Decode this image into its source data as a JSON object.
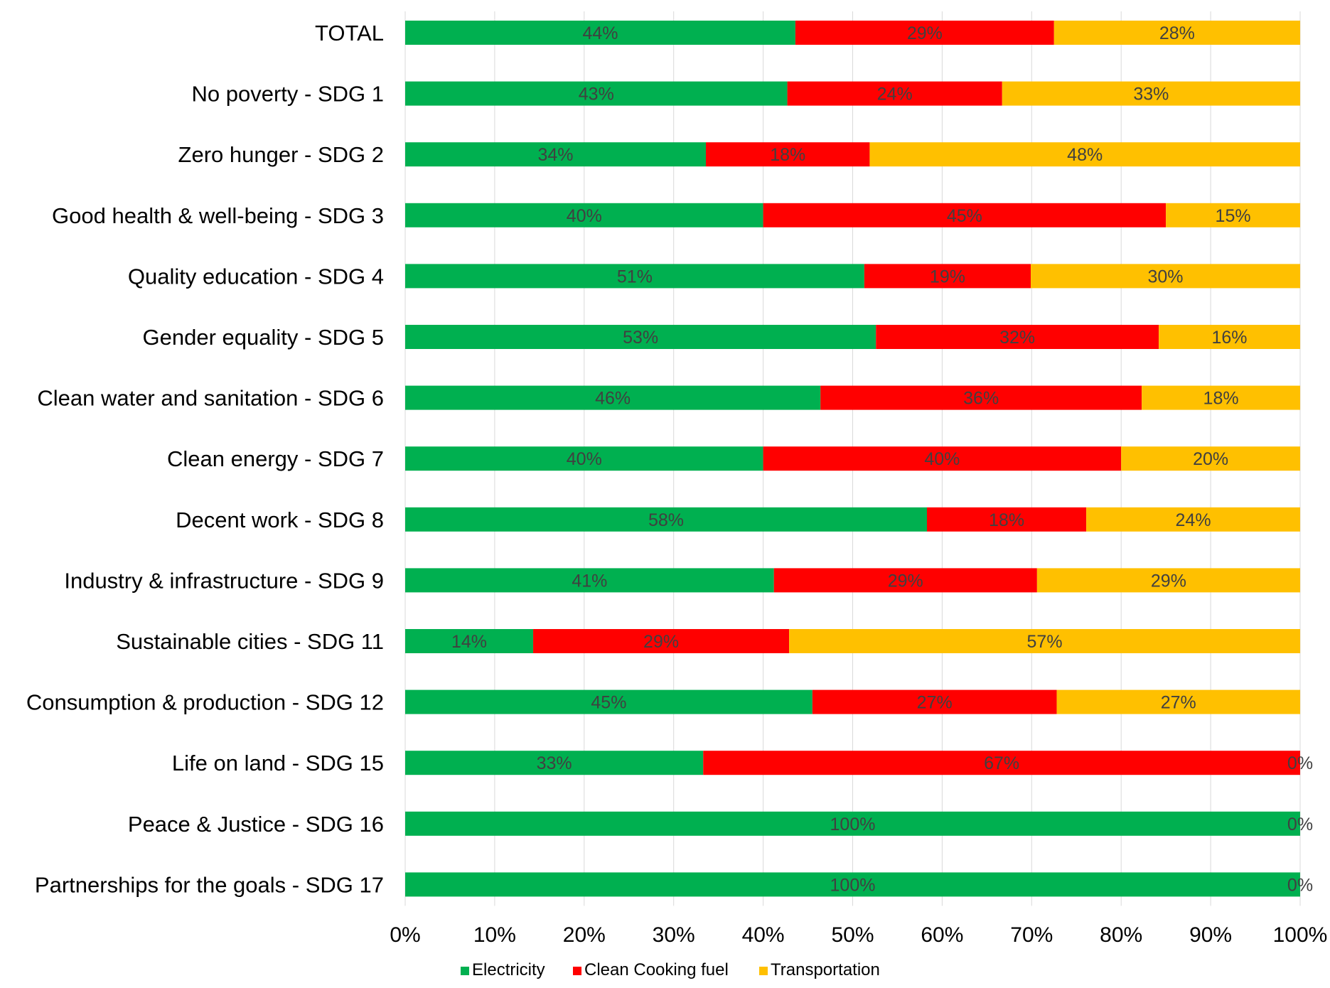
{
  "chart_data": {
    "type": "bar",
    "orientation": "horizontal",
    "stacked": "percent",
    "title": "",
    "xlabel": "",
    "ylabel": "",
    "xlim": [
      0,
      100
    ],
    "x_ticks": [
      "0%",
      "10%",
      "20%",
      "30%",
      "40%",
      "50%",
      "60%",
      "70%",
      "80%",
      "90%",
      "100%"
    ],
    "grid": "vertical",
    "legend_position": "bottom",
    "categories": [
      "TOTAL",
      "No poverty - SDG 1",
      "Zero hunger - SDG 2",
      "Good health & well-being - SDG 3",
      "Quality education - SDG 4",
      "Gender equality - SDG 5",
      "Clean water and sanitation - SDG 6",
      "Clean energy - SDG 7",
      "Decent work - SDG 8",
      "Industry & infrastructure - SDG 9",
      "Sustainable cities - SDG 11",
      "Consumption & production - SDG 12",
      "Life on land - SDG 15",
      "Peace & Justice - SDG 16",
      "Partnerships for the goals - SDG 17"
    ],
    "series": [
      {
        "name": "Electricity",
        "color": "#00b050",
        "values": [
          43.6,
          42.7,
          33.6,
          40.0,
          51.3,
          52.6,
          46.4,
          40.0,
          58.3,
          41.2,
          14.3,
          45.5,
          33.3,
          100.0,
          100.0
        ],
        "labels": [
          "44%",
          "43%",
          "34%",
          "40%",
          "51%",
          "53%",
          "46%",
          "40%",
          "58%",
          "41%",
          "14%",
          "45%",
          "33%",
          "100%",
          "100%"
        ]
      },
      {
        "name": "Clean Cooking fuel",
        "color": "#ff0000",
        "values": [
          28.9,
          24.0,
          18.3,
          45.0,
          18.6,
          31.6,
          35.9,
          40.0,
          17.8,
          29.4,
          28.6,
          27.3,
          66.7,
          0,
          0
        ],
        "labels": [
          "29%",
          "24%",
          "18%",
          "45%",
          "19%",
          "32%",
          "36%",
          "40%",
          "18%",
          "29%",
          "29%",
          "27%",
          "67%",
          "",
          ""
        ]
      },
      {
        "name": "Transportation",
        "color": "#ffc000",
        "values": [
          27.5,
          33.3,
          48.1,
          15.0,
          30.1,
          15.8,
          17.7,
          20.0,
          23.9,
          29.4,
          57.1,
          27.2,
          0,
          0,
          0
        ],
        "labels": [
          "28%",
          "33%",
          "48%",
          "15%",
          "30%",
          "16%",
          "18%",
          "20%",
          "24%",
          "29%",
          "57%",
          "27%",
          "0%",
          "0%",
          "0%"
        ]
      }
    ]
  }
}
